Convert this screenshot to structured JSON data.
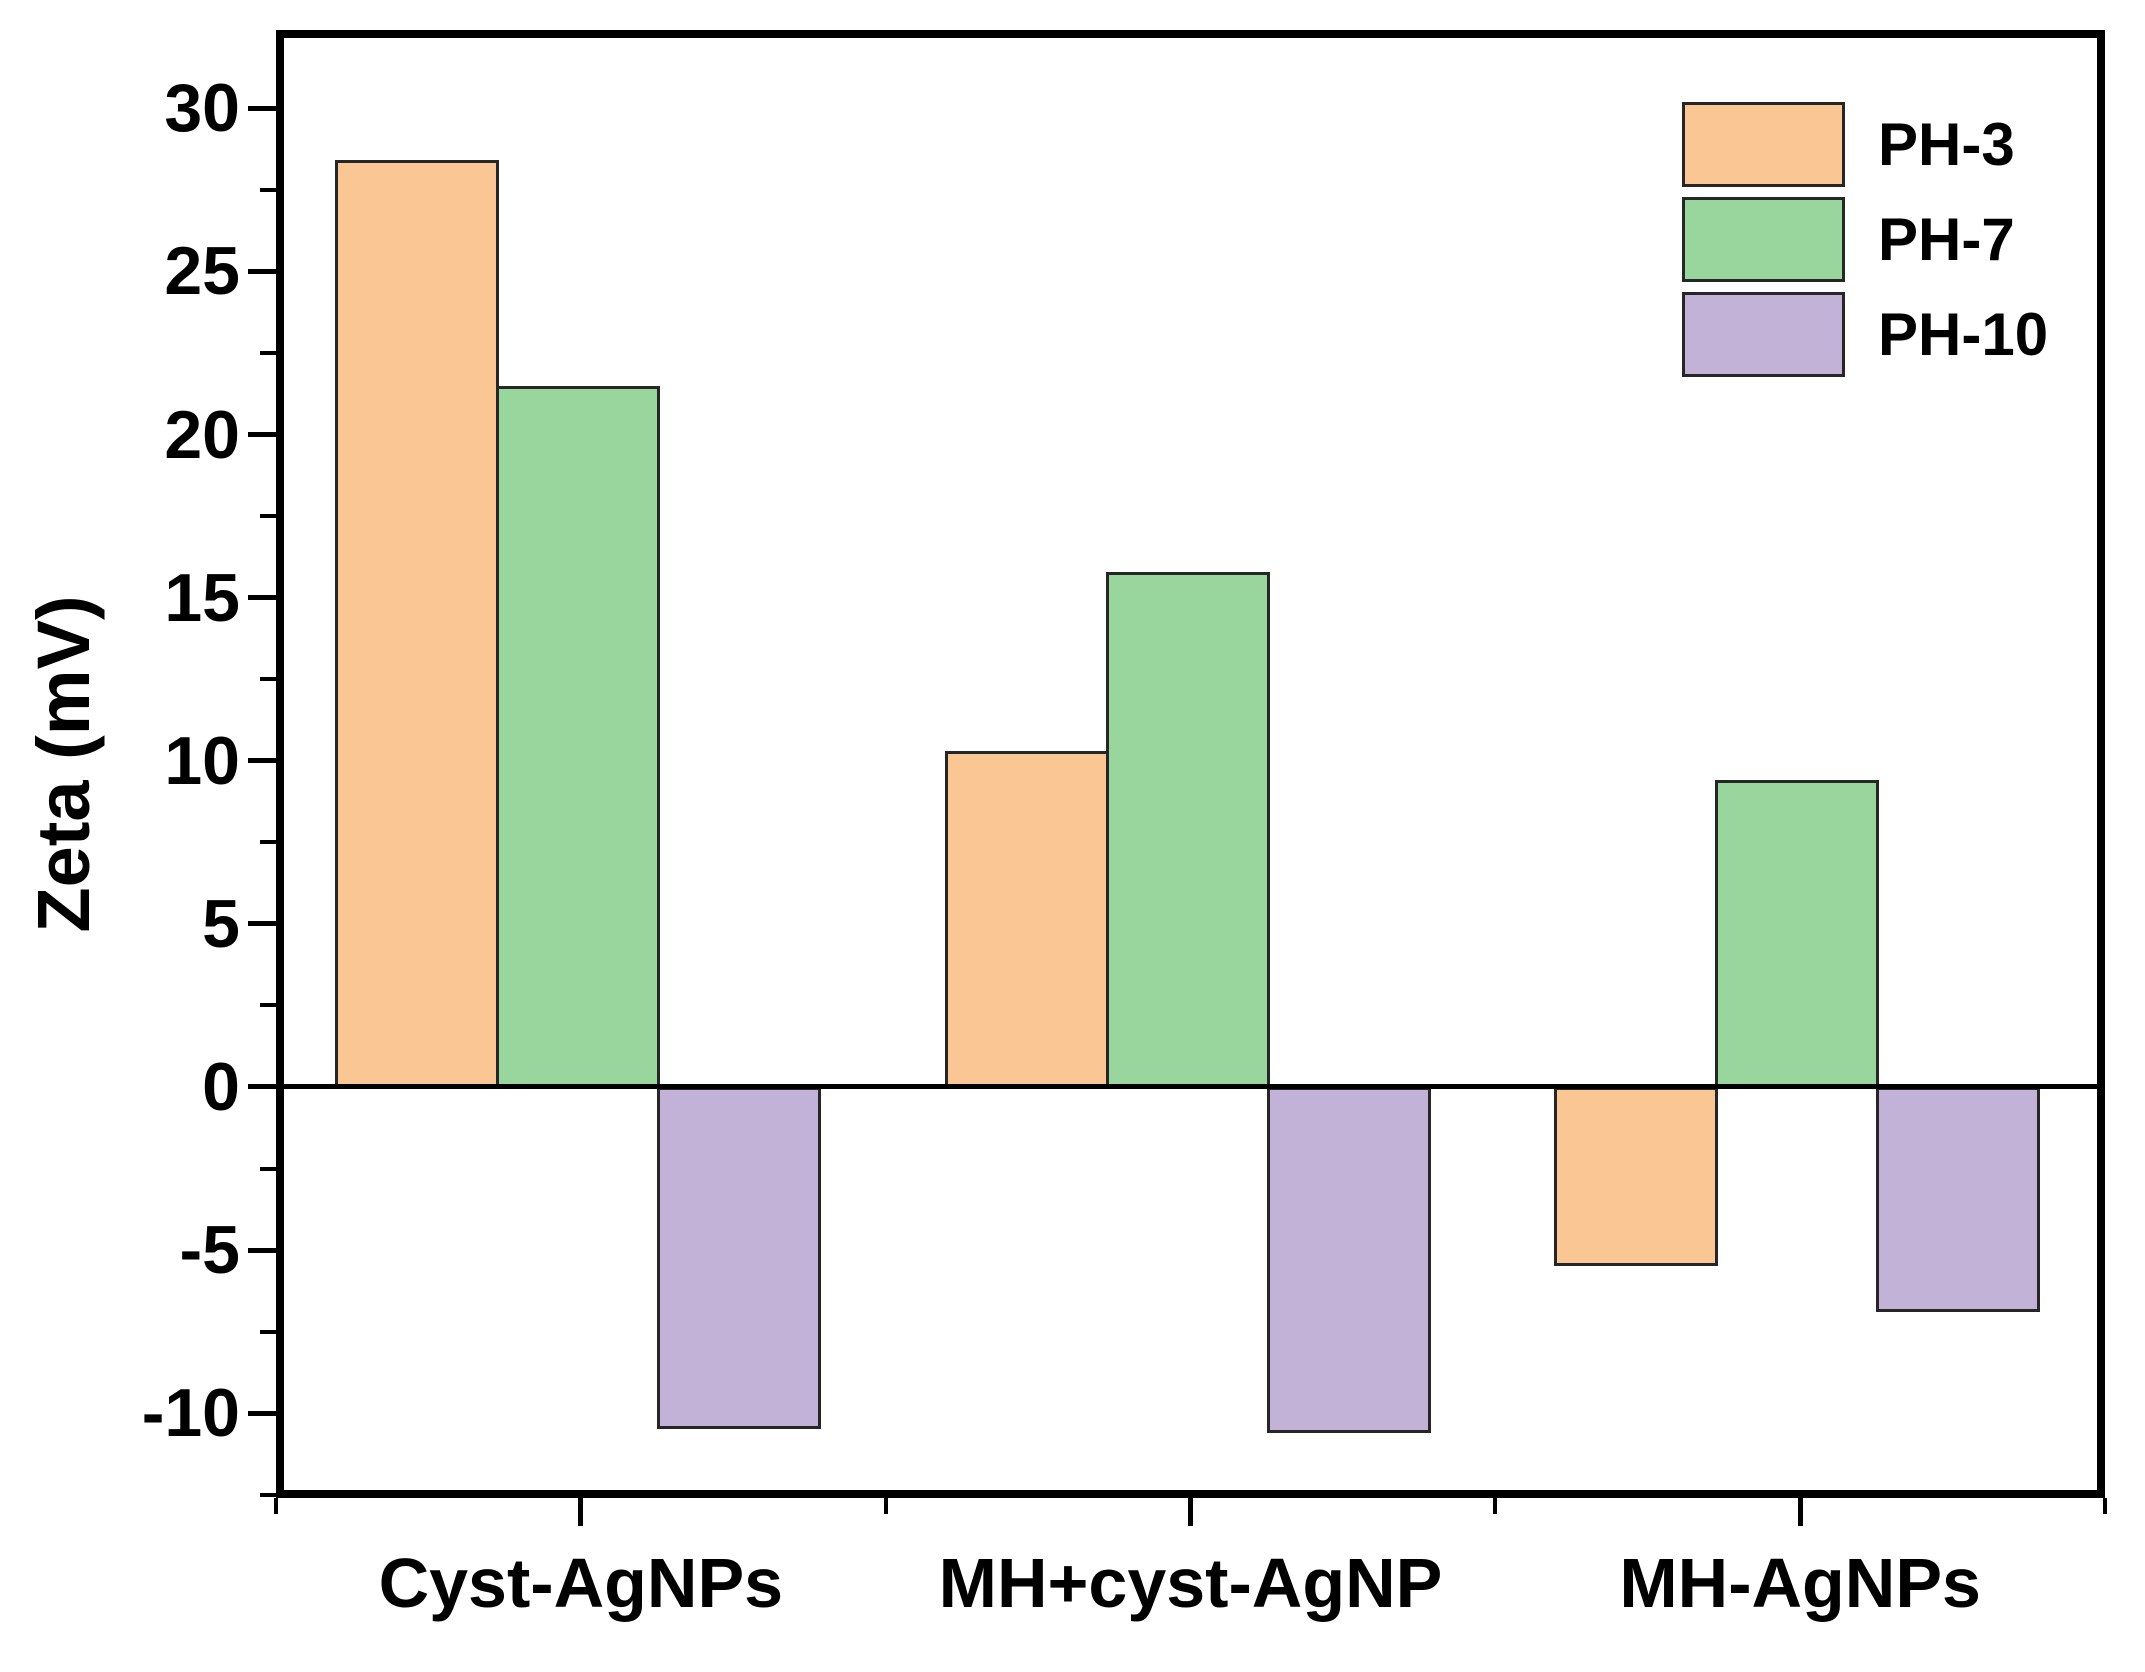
{
  "figure": {
    "background_color": "#ffffff",
    "axis_color": "#000000",
    "bar_border_color": "#262626"
  },
  "chart_data": {
    "type": "bar",
    "title": "",
    "xlabel": "",
    "ylabel": "Zeta (mV)",
    "categories": [
      "Cyst-AgNPs",
      "MH+cyst-AgNP",
      "MH-AgNPs"
    ],
    "series": [
      {
        "name": "PH-3",
        "color": "#FAC693",
        "values": [
          28.4,
          10.3,
          -5.5
        ]
      },
      {
        "name": "PH-7",
        "color": "#99D69E",
        "values": [
          21.5,
          15.8,
          9.4
        ]
      },
      {
        "name": "PH-10",
        "color": "#C2B2D8",
        "values": [
          -10.5,
          -10.6,
          -6.9
        ]
      }
    ],
    "ylim": [
      -12.6,
      32.4
    ],
    "yticks": [
      {
        "value": 30,
        "label": "30"
      },
      {
        "value": 25,
        "label": "25"
      },
      {
        "value": 20,
        "label": "20"
      },
      {
        "value": 15,
        "label": "15"
      },
      {
        "value": 10,
        "label": "10"
      },
      {
        "value": 5,
        "label": "5"
      },
      {
        "value": 0,
        "label": "0"
      },
      {
        "value": -5,
        "label": "-5"
      },
      {
        "value": -10,
        "label": "-10"
      }
    ],
    "ytick_minor_values": [
      27.5,
      22.5,
      17.5,
      12.5,
      7.5,
      2.5,
      -2.5,
      -7.5,
      -12.5
    ],
    "legend": {
      "position": "top-right",
      "items": [
        "PH-3",
        "PH-7",
        "PH-10"
      ]
    },
    "grid": false
  }
}
